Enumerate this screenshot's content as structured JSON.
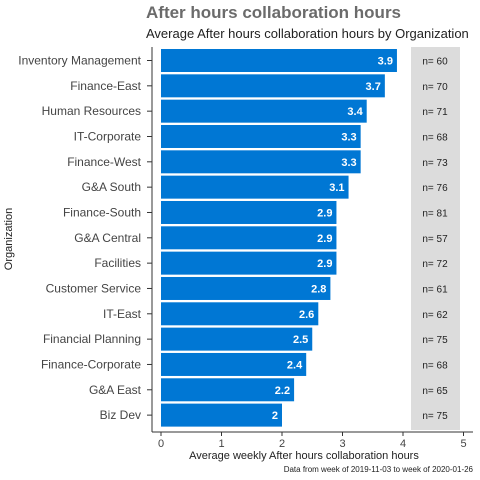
{
  "chart_data": {
    "type": "bar",
    "orientation": "horizontal",
    "title": "After hours collaboration hours",
    "subtitle": "Average After hours collaboration hours by Organization",
    "xlabel": "Average weekly After hours collaboration hours",
    "ylabel": "Organization",
    "caption": "Data from week of 2019-11-03 to week of 2020-01-26",
    "xlim": [
      0,
      5
    ],
    "x_ticks": [
      "0",
      "1",
      "2",
      "3",
      "4",
      "5"
    ],
    "grid": false,
    "bar_color": "#0077D4",
    "count_panel_color": "#DCDCDC",
    "categories": [
      "Inventory Management",
      "Finance-East",
      "Human Resources",
      "IT-Corporate",
      "Finance-West",
      "G&A South",
      "Finance-South",
      "G&A Central",
      "Facilities",
      "Customer Service",
      "IT-East",
      "Financial Planning",
      "Finance-Corporate",
      "G&A East",
      "Biz Dev"
    ],
    "values": [
      3.9,
      3.7,
      3.4,
      3.3,
      3.3,
      3.1,
      2.9,
      2.9,
      2.9,
      2.8,
      2.6,
      2.5,
      2.4,
      2.2,
      2.0
    ],
    "value_labels": [
      "3.9",
      "3.7",
      "3.4",
      "3.3",
      "3.3",
      "3.1",
      "2.9",
      "2.9",
      "2.9",
      "2.8",
      "2.6",
      "2.5",
      "2.4",
      "2.2",
      "2"
    ],
    "counts": [
      "n= 60",
      "n= 70",
      "n= 71",
      "n= 68",
      "n= 73",
      "n= 76",
      "n= 81",
      "n= 57",
      "n= 72",
      "n= 61",
      "n= 62",
      "n= 75",
      "n= 68",
      "n= 65",
      "n= 75"
    ]
  }
}
